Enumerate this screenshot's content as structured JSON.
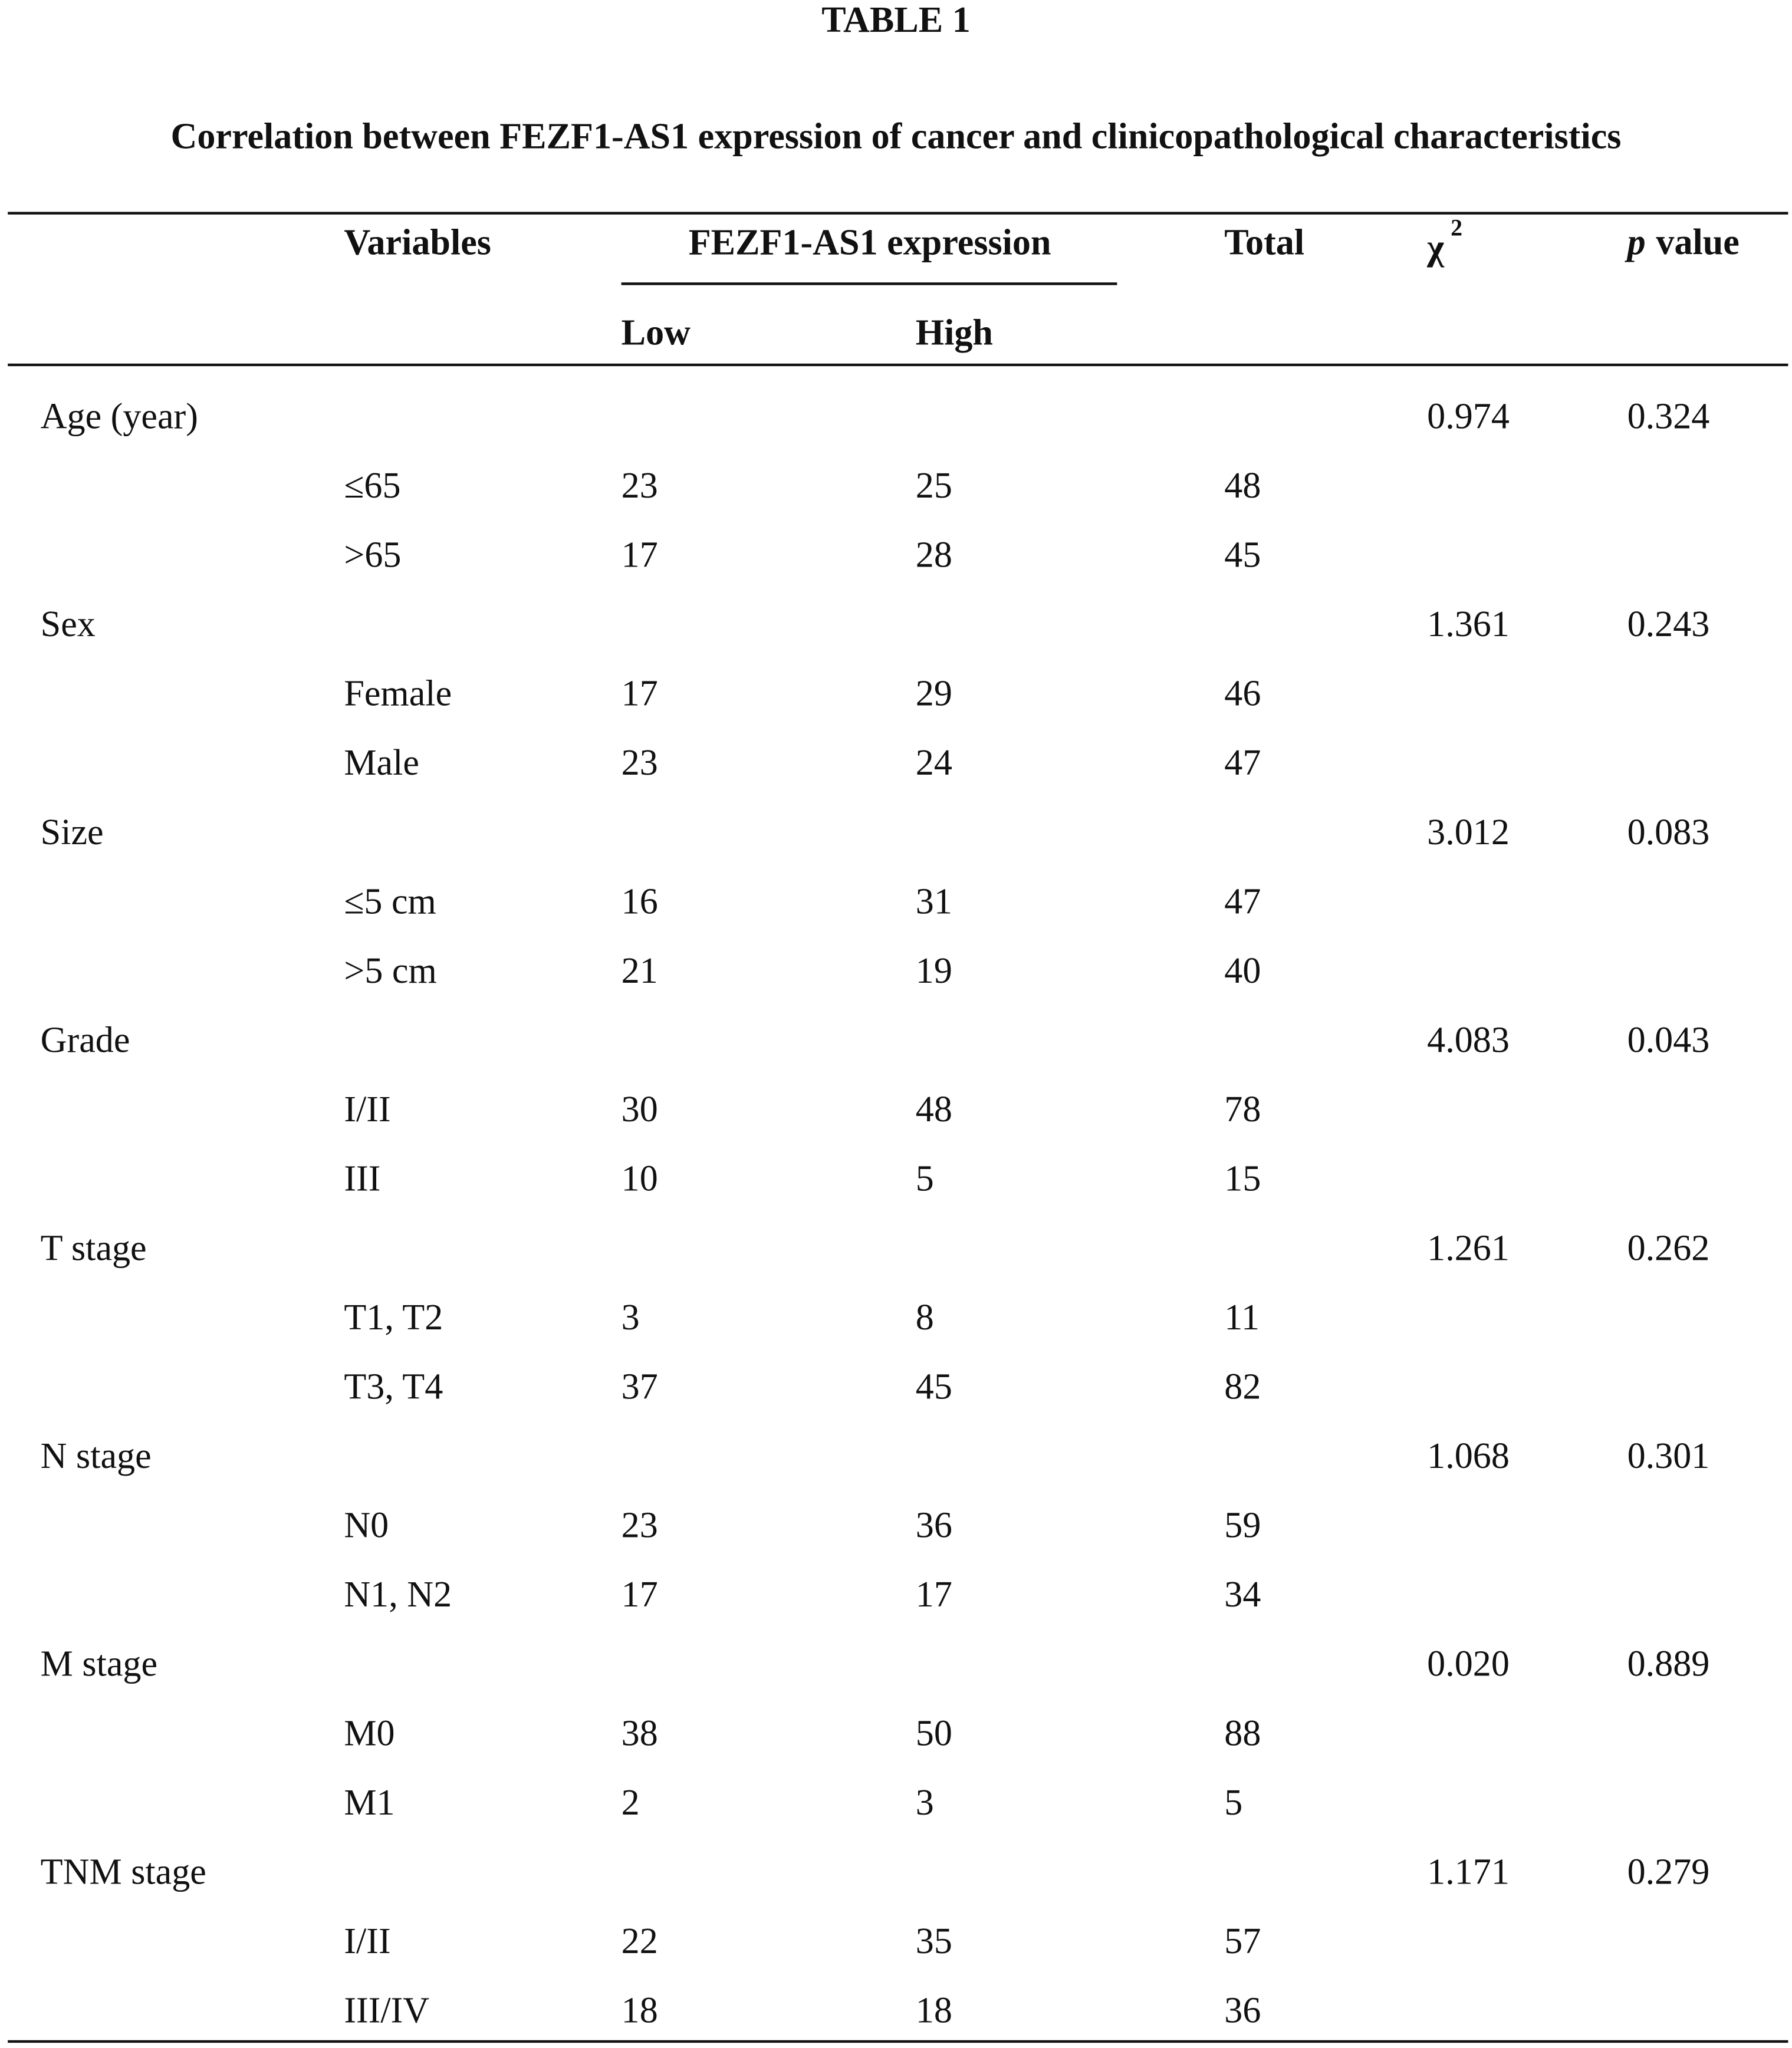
{
  "title": "TABLE 1",
  "caption": "Correlation between FEZF1-AS1 expression of cancer and clinicopathological characteristics",
  "header": {
    "variables": "Variables",
    "group": "FEZF1-AS1 expression",
    "low": "Low",
    "high": "High",
    "total": "Total",
    "chi": "χ",
    "chi_sup": "2",
    "p": "p",
    "p_rest": "value"
  },
  "groups": [
    {
      "name": "Age (year)",
      "chi2": "0.974",
      "p": "0.324",
      "rows": [
        [
          "≤65",
          "23",
          "25",
          "48"
        ],
        [
          ">65",
          "17",
          "28",
          "45"
        ]
      ]
    },
    {
      "name": "Sex",
      "chi2": "1.361",
      "p": "0.243",
      "rows": [
        [
          "Female",
          "17",
          "29",
          "46"
        ],
        [
          "Male",
          "23",
          "24",
          "47"
        ]
      ]
    },
    {
      "name": "Size",
      "chi2": "3.012",
      "p": "0.083",
      "rows": [
        [
          "≤5 cm",
          "16",
          "31",
          "47"
        ],
        [
          ">5 cm",
          "21",
          "19",
          "40"
        ]
      ]
    },
    {
      "name": "Grade",
      "chi2": "4.083",
      "p": "0.043",
      "rows": [
        [
          "I/II",
          "30",
          "48",
          "78"
        ],
        [
          "III",
          "10",
          "5",
          "15"
        ]
      ]
    },
    {
      "name": "T stage",
      "chi2": "1.261",
      "p": "0.262",
      "rows": [
        [
          "T1, T2",
          "3",
          "8",
          "11"
        ],
        [
          "T3, T4",
          "37",
          "45",
          "82"
        ]
      ]
    },
    {
      "name": "N stage",
      "chi2": "1.068",
      "p": "0.301",
      "rows": [
        [
          "N0",
          "23",
          "36",
          "59"
        ],
        [
          "N1, N2",
          "17",
          "17",
          "34"
        ]
      ]
    },
    {
      "name": "M stage",
      "chi2": "0.020",
      "p": "0.889",
      "rows": [
        [
          "M0",
          "38",
          "50",
          "88"
        ],
        [
          "M1",
          "2",
          "3",
          "5"
        ]
      ]
    },
    {
      "name": "TNM stage",
      "chi2": "1.171",
      "p": "0.279",
      "rows": [
        [
          "I/II",
          "22",
          "35",
          "57"
        ],
        [
          "III/IV",
          "18",
          "18",
          "36"
        ]
      ]
    }
  ]
}
